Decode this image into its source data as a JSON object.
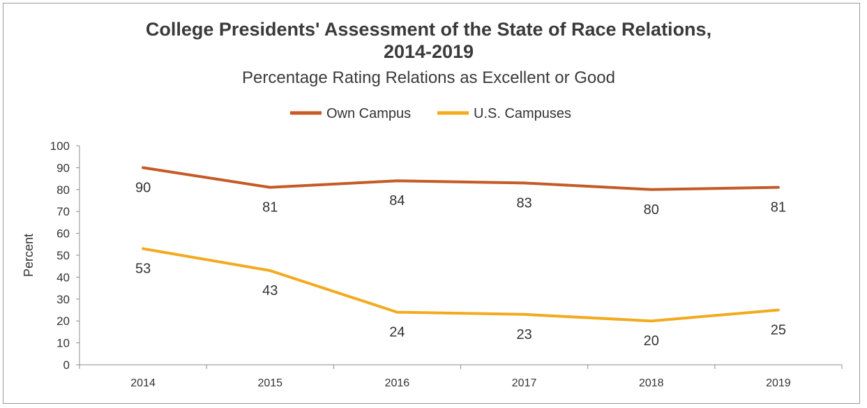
{
  "chart_data": {
    "type": "line",
    "title_line1": "College Presidents' Assessment of the State of Race Relations,",
    "title_line2": "2014-2019",
    "subtitle": "Percentage Rating Relations as Excellent or Good",
    "ylabel": "Percent",
    "xlabel": "",
    "ylim": [
      0,
      100
    ],
    "yticks": [
      0,
      10,
      20,
      30,
      40,
      50,
      60,
      70,
      80,
      90,
      100
    ],
    "categories": [
      "2014",
      "2015",
      "2016",
      "2017",
      "2018",
      "2019"
    ],
    "series": [
      {
        "name": "Own Campus",
        "color": "#c55a27",
        "values": [
          90,
          81,
          84,
          83,
          80,
          81
        ],
        "labels": [
          "90",
          "81",
          "84",
          "83",
          "80",
          "81"
        ]
      },
      {
        "name": "U.S. Campuses",
        "color": "#f2aa1f",
        "values": [
          53,
          43,
          24,
          23,
          20,
          25
        ],
        "labels": [
          "53",
          "43",
          "24",
          "23",
          "20",
          "25"
        ]
      }
    ],
    "legend_position": "top-center",
    "grid": false
  }
}
